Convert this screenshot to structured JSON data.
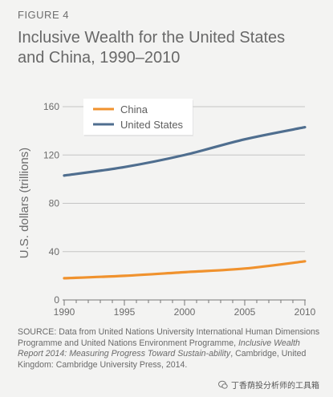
{
  "figure_label": "FIGURE 4",
  "title_line1": "Inclusive Wealth for the United States",
  "title_line2": "and China, 1990–2010",
  "source": {
    "part1": "SOURCE: Data from United Nations University International Human Dimensions Programme and United Nations Environment Programme,",
    "italic": "Inclusive Wealth Report 2014: Measuring Progress Toward Sustain-ability",
    "part2": ", Cambridge, United Kingdom: Cambridge University Press, 2014."
  },
  "watermark": {
    "text": "丁香荫投分析师的工具箱",
    "icon": "wechat-icon"
  },
  "chart_data": {
    "type": "line",
    "x": [
      1990,
      1995,
      2000,
      2005,
      2010
    ],
    "xticks": [
      "1990",
      "1995",
      "2000",
      "2005",
      "2010"
    ],
    "xlim": [
      1990,
      2010
    ],
    "ylim": [
      0,
      160
    ],
    "yticks": [
      "0",
      "40",
      "80",
      "120",
      "160"
    ],
    "ylabel": "U.S. dollars (trillions)",
    "xlabel": "",
    "grid": true,
    "legend_position": "top-left",
    "series": [
      {
        "name": "China",
        "color": "#f0922e",
        "values": [
          18,
          20,
          23,
          26,
          32
        ]
      },
      {
        "name": "United States",
        "color": "#4f6e8f",
        "values": [
          103,
          110,
          120,
          133,
          143
        ]
      }
    ]
  }
}
